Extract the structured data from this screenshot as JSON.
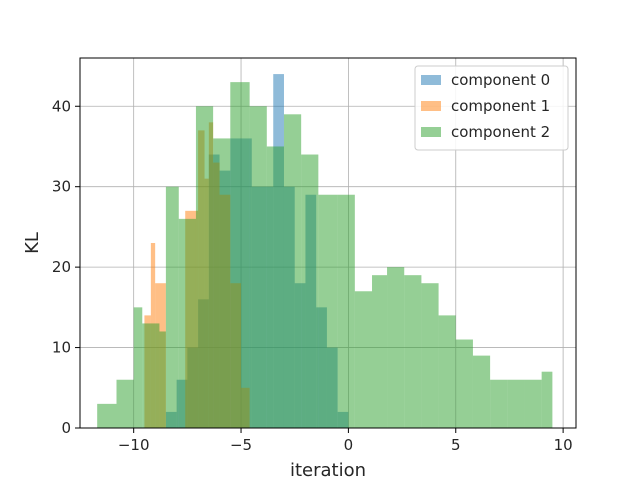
{
  "chart_data": {
    "type": "bar",
    "title": "",
    "xlabel": "iteration",
    "ylabel": "KL",
    "xlim": [
      -12.5,
      10.6
    ],
    "ylim": [
      0,
      46
    ],
    "xticks": [
      -10,
      -5,
      0,
      5,
      10
    ],
    "yticks": [
      0,
      10,
      20,
      30,
      40
    ],
    "xtick_labels": [
      "−10",
      "−5",
      "0",
      "5",
      "10"
    ],
    "ytick_labels": [
      "0",
      "10",
      "20",
      "30",
      "40"
    ],
    "grid": true,
    "legend_position": "top-right",
    "series": [
      {
        "name": "component 0",
        "color": "#1f77b4",
        "opacity": 0.5,
        "bins": [
          [
            -8.5,
            -8.0,
            2
          ],
          [
            -8.0,
            -7.5,
            6
          ],
          [
            -7.5,
            -7.0,
            10
          ],
          [
            -7.0,
            -6.5,
            16
          ],
          [
            -6.5,
            -6.0,
            34
          ],
          [
            -6.0,
            -5.5,
            32
          ],
          [
            -5.5,
            -5.0,
            36
          ],
          [
            -5.0,
            -4.5,
            36
          ],
          [
            -4.5,
            -4.0,
            30
          ],
          [
            -4.0,
            -3.5,
            30
          ],
          [
            -3.5,
            -3.0,
            44
          ],
          [
            -3.0,
            -2.5,
            30
          ],
          [
            -2.5,
            -2.0,
            18
          ],
          [
            -2.0,
            -1.5,
            29
          ],
          [
            -1.5,
            -1.0,
            15
          ],
          [
            -1.0,
            -0.5,
            10
          ],
          [
            -0.5,
            0.0,
            2
          ]
        ]
      },
      {
        "name": "component 1",
        "color": "#ff7f0e",
        "opacity": 0.5,
        "bins": [
          [
            -9.9,
            -9.5,
            0
          ],
          [
            -9.5,
            -9.2,
            14
          ],
          [
            -9.2,
            -9.0,
            23
          ],
          [
            -9.0,
            -8.5,
            18
          ],
          [
            -8.5,
            -8.2,
            0
          ],
          [
            -7.6,
            -7.0,
            27
          ],
          [
            -7.0,
            -6.7,
            37
          ],
          [
            -6.7,
            -6.5,
            31
          ],
          [
            -6.5,
            -6.3,
            38
          ],
          [
            -6.3,
            -6.0,
            33
          ],
          [
            -6.0,
            -5.5,
            29
          ],
          [
            -5.5,
            -5.0,
            18
          ],
          [
            -5.0,
            -4.6,
            5
          ]
        ]
      },
      {
        "name": "component 2",
        "color": "#2ca02c",
        "opacity": 0.5,
        "bins": [
          [
            -11.7,
            -10.8,
            3
          ],
          [
            -10.8,
            -10.0,
            6
          ],
          [
            -10.0,
            -9.6,
            15
          ],
          [
            -9.6,
            -8.8,
            13
          ],
          [
            -8.8,
            -8.5,
            12
          ],
          [
            -8.5,
            -7.9,
            30
          ],
          [
            -7.9,
            -7.1,
            26
          ],
          [
            -7.1,
            -6.3,
            40
          ],
          [
            -6.3,
            -5.5,
            36
          ],
          [
            -5.5,
            -4.6,
            43
          ],
          [
            -4.6,
            -3.8,
            40
          ],
          [
            -3.8,
            -3.0,
            35
          ],
          [
            -3.0,
            -2.2,
            39
          ],
          [
            -2.2,
            -1.4,
            34
          ],
          [
            -1.4,
            -0.5,
            29
          ],
          [
            -0.5,
            0.3,
            29
          ],
          [
            0.3,
            1.1,
            17
          ],
          [
            1.1,
            1.8,
            19
          ],
          [
            1.8,
            2.6,
            20
          ],
          [
            2.6,
            3.4,
            19
          ],
          [
            3.4,
            4.2,
            18
          ],
          [
            4.2,
            5.0,
            14
          ],
          [
            5.0,
            5.8,
            11
          ],
          [
            5.8,
            6.6,
            9
          ],
          [
            6.6,
            7.4,
            6
          ],
          [
            7.4,
            8.2,
            6
          ],
          [
            8.2,
            9.0,
            6
          ],
          [
            9.0,
            9.5,
            7
          ]
        ]
      }
    ]
  }
}
